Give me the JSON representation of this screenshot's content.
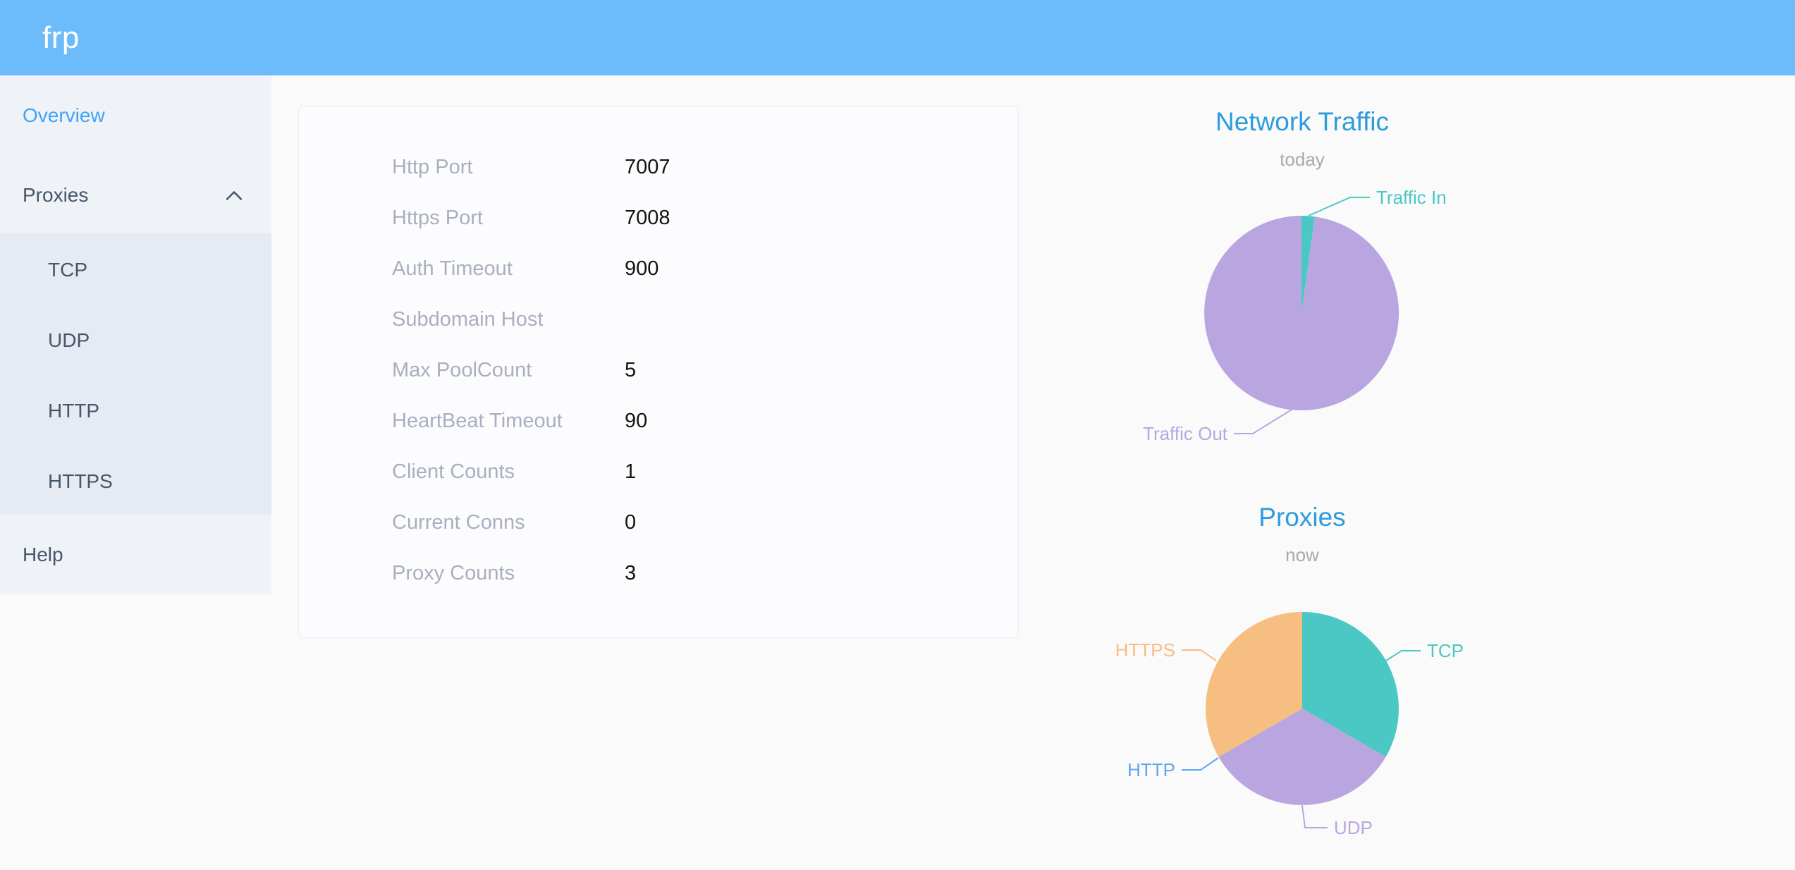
{
  "header": {
    "logo": "frp"
  },
  "sidebar": {
    "items": [
      {
        "label": "Overview",
        "active": true,
        "children": []
      },
      {
        "label": "Proxies",
        "active": false,
        "expanded": true,
        "children": [
          "TCP",
          "UDP",
          "HTTP",
          "HTTPS"
        ]
      },
      {
        "label": "Help",
        "active": false,
        "children": []
      }
    ]
  },
  "server_info": {
    "rows": [
      {
        "label": "Http Port",
        "value": "7007"
      },
      {
        "label": "Https Port",
        "value": "7008"
      },
      {
        "label": "Auth Timeout",
        "value": "900"
      },
      {
        "label": "Subdomain Host",
        "value": ""
      },
      {
        "label": "Max PoolCount",
        "value": "5"
      },
      {
        "label": "HeartBeat Timeout",
        "value": "90"
      },
      {
        "label": "Client Counts",
        "value": "1"
      },
      {
        "label": "Current Conns",
        "value": "0"
      },
      {
        "label": "Proxy Counts",
        "value": "3"
      }
    ]
  },
  "chart_data": [
    {
      "type": "pie",
      "title": "Network Traffic",
      "subtitle": "today",
      "legend_position": "outside-callout",
      "series": [
        {
          "name": "Traffic In",
          "pct": 2.2,
          "color": "#4BC8C3"
        },
        {
          "name": "Traffic Out",
          "pct": 97.8,
          "color": "#B9A6E0"
        }
      ]
    },
    {
      "type": "pie",
      "title": "Proxies",
      "subtitle": "now",
      "legend_position": "outside-callout",
      "series": [
        {
          "name": "TCP",
          "value": 1,
          "color": "#4BC8C3"
        },
        {
          "name": "UDP",
          "value": 1,
          "color": "#B9A6E0"
        },
        {
          "name": "HTTP",
          "value": 0,
          "color": "#5FA5EC"
        },
        {
          "name": "HTTPS",
          "value": 1,
          "color": "#F7BE81"
        }
      ]
    }
  ],
  "colors": {
    "header_bg": "#6CBCFB",
    "sidebar_bg": "#EFF2F6",
    "submenu_bg": "#E6EAF2",
    "sidebar_text": "#475669",
    "active_item": "#3FA3F7",
    "chart_title": "#2D9CDB",
    "table_label": "#A8B0BE"
  }
}
